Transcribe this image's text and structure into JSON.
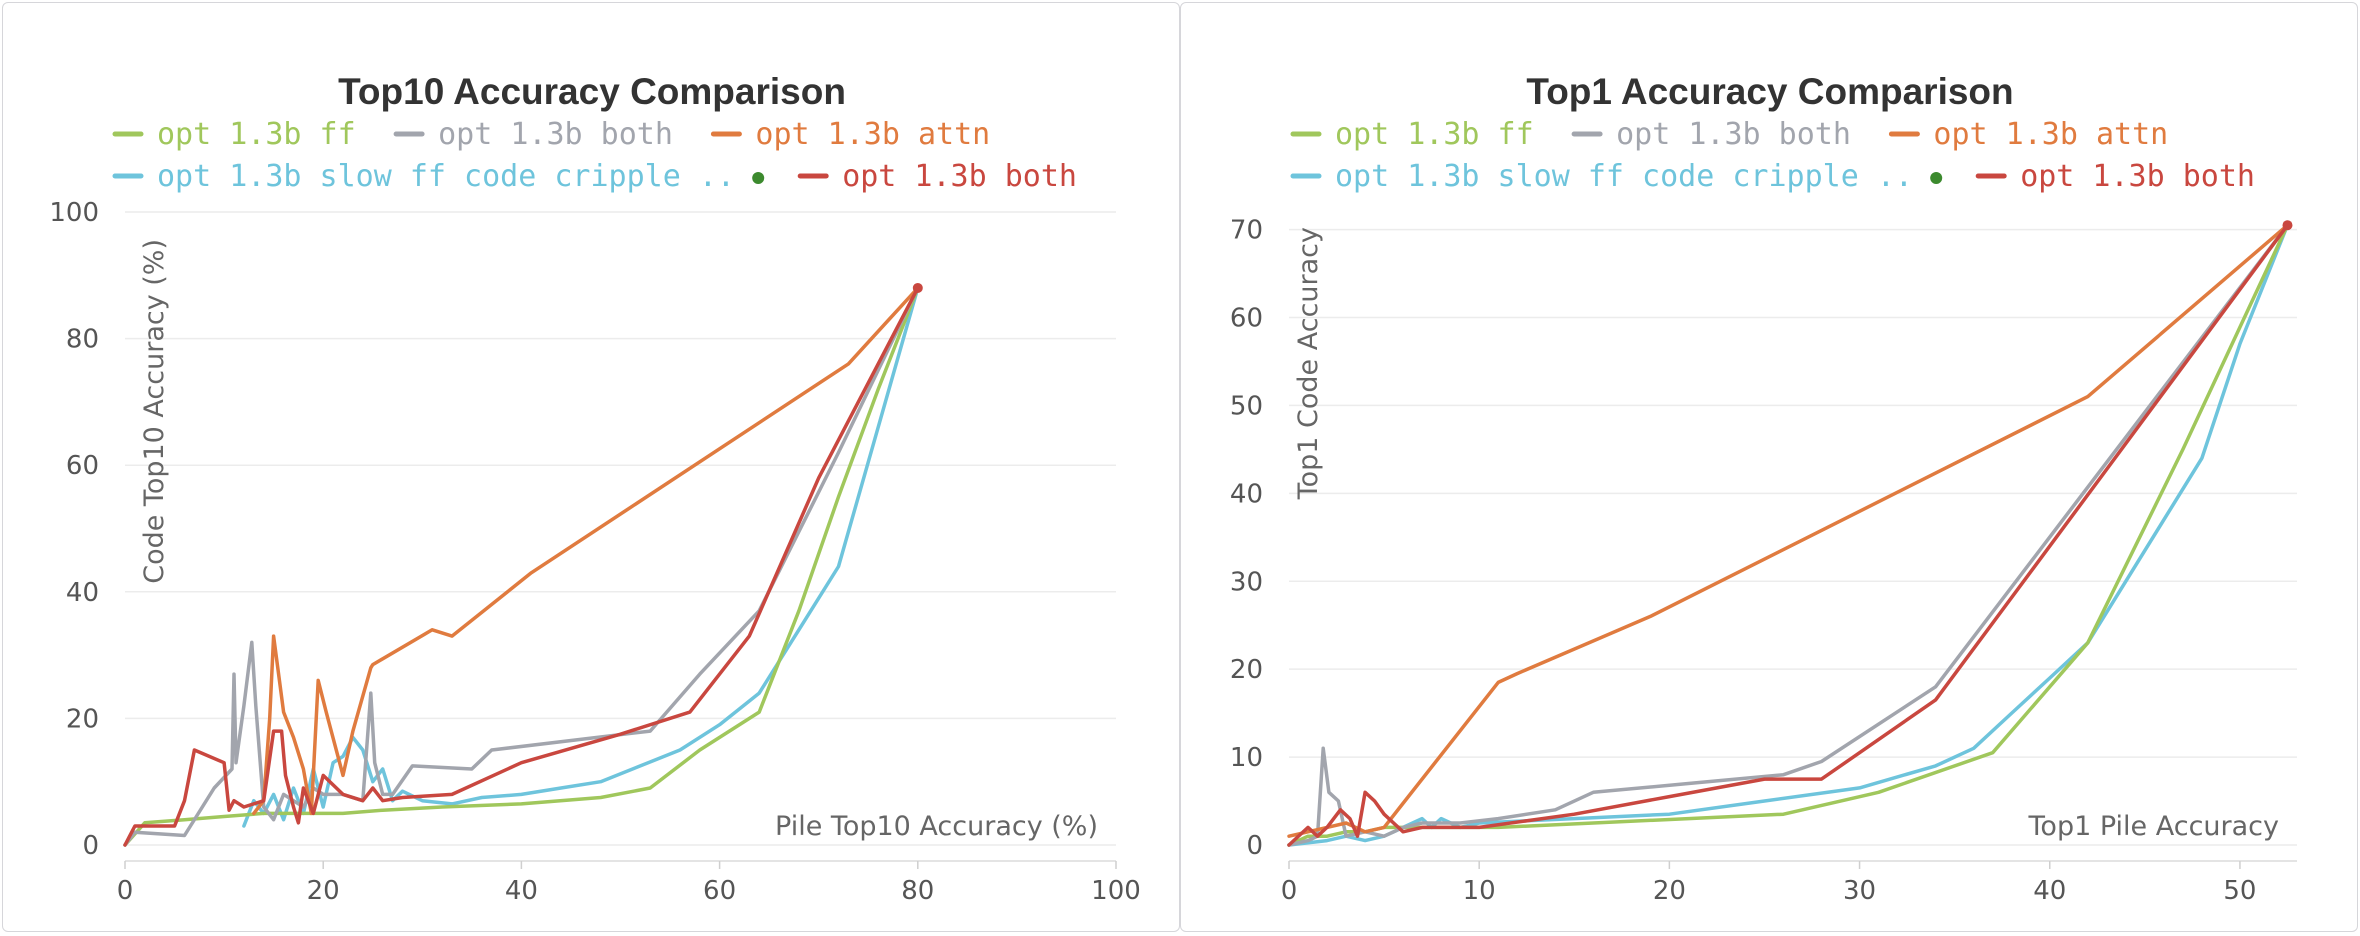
{
  "legend_order": [
    "opt_ff",
    "opt_both_gray",
    "opt_attn",
    "opt_slow",
    "opt_both_red"
  ],
  "chart_data": [
    {
      "type": "line",
      "title": "Top10 Accuracy Comparison",
      "xlabel": "Pile Top10 Accuracy (%)",
      "ylabel": "Code Top10 Accuracy (%)",
      "xlim": [
        0,
        100
      ],
      "ylim": [
        0,
        100
      ],
      "xticks": [
        0,
        20,
        40,
        60,
        80,
        100
      ],
      "yticks": [
        0,
        20,
        40,
        60,
        80,
        100
      ],
      "grid": true,
      "legend_position": "top",
      "series": [
        {
          "key": "opt_ff",
          "name": "opt 1.3b ff",
          "color": "#a0c75c",
          "x": [
            0,
            2,
            6,
            10,
            14,
            18,
            22,
            26,
            32,
            40,
            48,
            53,
            58,
            64,
            68,
            72,
            76,
            80
          ],
          "y": [
            0,
            3.5,
            4,
            4.5,
            5,
            5,
            5,
            5.5,
            6,
            6.5,
            7.5,
            9,
            15,
            21,
            37,
            55,
            72,
            88
          ]
        },
        {
          "key": "opt_both_gray",
          "name": "opt 1.3b both",
          "color": "#a2a5ad",
          "x": [
            0,
            1,
            6,
            9,
            10.8,
            11,
            11.2,
            12,
            12.8,
            13.2,
            14,
            15,
            16,
            17,
            18,
            19,
            20,
            22,
            24,
            24.8,
            25.2,
            26,
            27,
            29,
            35,
            37,
            53,
            58,
            64,
            72,
            80
          ],
          "y": [
            0,
            2,
            1.5,
            9,
            12,
            27,
            13,
            22,
            32,
            22,
            6,
            4,
            8,
            7,
            6,
            9,
            8,
            8,
            7,
            24,
            13,
            8,
            8,
            12.5,
            12,
            15,
            18,
            27,
            37,
            62,
            88
          ]
        },
        {
          "key": "opt_attn",
          "name": "opt 1.3b attn",
          "color": "#e07b3f",
          "x": [
            13,
            14,
            14.6,
            15,
            16,
            17,
            18,
            18.8,
            19.5,
            20.3,
            22,
            23,
            24.8,
            25,
            31,
            33,
            41,
            73,
            80
          ],
          "y": [
            5,
            7,
            20,
            33,
            21,
            17,
            12,
            5,
            26,
            21,
            11,
            18,
            28,
            28.5,
            34,
            33,
            43,
            76,
            88
          ]
        },
        {
          "key": "opt_slow",
          "name": "opt 1.3b slow ff code cripple ..",
          "color": "#6ec4dc",
          "x": [
            12,
            13,
            14,
            15,
            16,
            17,
            18,
            19,
            20,
            21,
            22,
            23,
            24,
            25,
            26,
            27,
            28,
            30,
            33,
            36,
            40,
            44,
            48,
            52,
            56,
            60,
            64,
            68,
            72,
            76,
            80
          ],
          "y": [
            3,
            7,
            5,
            8,
            4,
            9,
            5,
            12,
            6,
            13,
            14,
            17,
            15,
            10,
            12,
            7,
            8.5,
            7,
            6.5,
            7.5,
            8,
            9,
            10,
            12.5,
            15,
            19,
            24,
            34,
            44,
            66,
            88
          ]
        },
        {
          "key": "opt_both_red",
          "name": "opt 1.3b both",
          "color": "#c9473f",
          "x": [
            0,
            1,
            5,
            6,
            7,
            10,
            10.5,
            11,
            12,
            14,
            15,
            15.8,
            16.2,
            17,
            17.5,
            18,
            19,
            20,
            22,
            24,
            25,
            26,
            28,
            33,
            40,
            50,
            57,
            63,
            70,
            80
          ],
          "y": [
            0,
            3,
            3,
            7,
            15,
            13,
            5.5,
            7,
            6,
            7,
            18,
            18,
            11,
            6,
            3.5,
            9,
            5,
            11,
            8,
            7,
            9,
            7,
            7.5,
            8,
            13,
            17.5,
            21,
            33,
            58,
            88
          ]
        }
      ]
    },
    {
      "type": "line",
      "title": "Top1 Accuracy Comparison",
      "xlabel": "Top1 Pile Accuracy",
      "ylabel": "Top1 Code Accuracy",
      "xlim": [
        0,
        53
      ],
      "ylim": [
        0,
        72
      ],
      "xticks": [
        0,
        10,
        20,
        30,
        40,
        50
      ],
      "yticks": [
        0,
        10,
        20,
        30,
        40,
        50,
        60,
        70
      ],
      "grid": true,
      "legend_position": "top",
      "series": [
        {
          "key": "opt_ff",
          "name": "opt 1.3b ff",
          "color": "#a0c75c",
          "x": [
            0,
            1,
            2,
            3,
            4,
            5,
            6,
            8,
            11,
            16,
            21,
            26,
            31,
            37,
            42,
            47,
            52.5
          ],
          "y": [
            0,
            1,
            1,
            1.5,
            1.5,
            2,
            2,
            2,
            2,
            2.5,
            3,
            3.5,
            6,
            10.5,
            23,
            45,
            70.5
          ]
        },
        {
          "key": "opt_both_gray",
          "name": "opt 1.3b both",
          "color": "#a2a5ad",
          "x": [
            0,
            1,
            1.5,
            1.8,
            2.1,
            2.6,
            3,
            4,
            5,
            6,
            7,
            9,
            11,
            14,
            16,
            21,
            26,
            28,
            34,
            52.5
          ],
          "y": [
            0,
            0.5,
            1,
            11,
            6,
            5,
            1,
            1.5,
            1,
            2,
            2.5,
            2.5,
            3,
            4,
            6,
            7,
            8,
            9.5,
            18,
            70.5
          ]
        },
        {
          "key": "opt_attn",
          "name": "opt 1.3b attn",
          "color": "#e07b3f",
          "x": [
            0,
            1,
            2,
            3,
            4,
            5,
            11,
            12,
            19,
            42,
            52.5
          ],
          "y": [
            1,
            1.5,
            2,
            2.5,
            1.5,
            2,
            18.5,
            19.5,
            26,
            51,
            70.5
          ]
        },
        {
          "key": "opt_slow",
          "name": "opt 1.3b slow ff code cripple ..",
          "color": "#6ec4dc",
          "x": [
            0,
            2,
            3,
            4,
            5,
            6,
            6.5,
            7,
            7.5,
            8,
            9,
            10,
            15,
            20,
            25,
            30,
            34,
            36,
            38,
            40,
            42,
            44,
            46,
            48,
            50,
            52.5
          ],
          "y": [
            0,
            0.5,
            1,
            0.5,
            1,
            2,
            2.5,
            3,
            2,
            3,
            2,
            2.5,
            3,
            3.5,
            5,
            6.5,
            9,
            11,
            15,
            19,
            23,
            30,
            37,
            44,
            57,
            70.5
          ]
        },
        {
          "key": "opt_both_red",
          "name": "opt 1.3b both",
          "color": "#c9473f",
          "x": [
            0,
            1,
            1.5,
            2,
            2.7,
            3.2,
            3.6,
            4,
            4.5,
            5,
            6,
            7,
            10,
            15,
            20,
            25,
            28,
            34,
            40,
            52.5
          ],
          "y": [
            0,
            2,
            1,
            2,
            4,
            3,
            1,
            6,
            5,
            3.5,
            1.5,
            2,
            2,
            3.5,
            5.5,
            7.5,
            7.5,
            16.5,
            34,
            70.5
          ]
        }
      ]
    }
  ]
}
